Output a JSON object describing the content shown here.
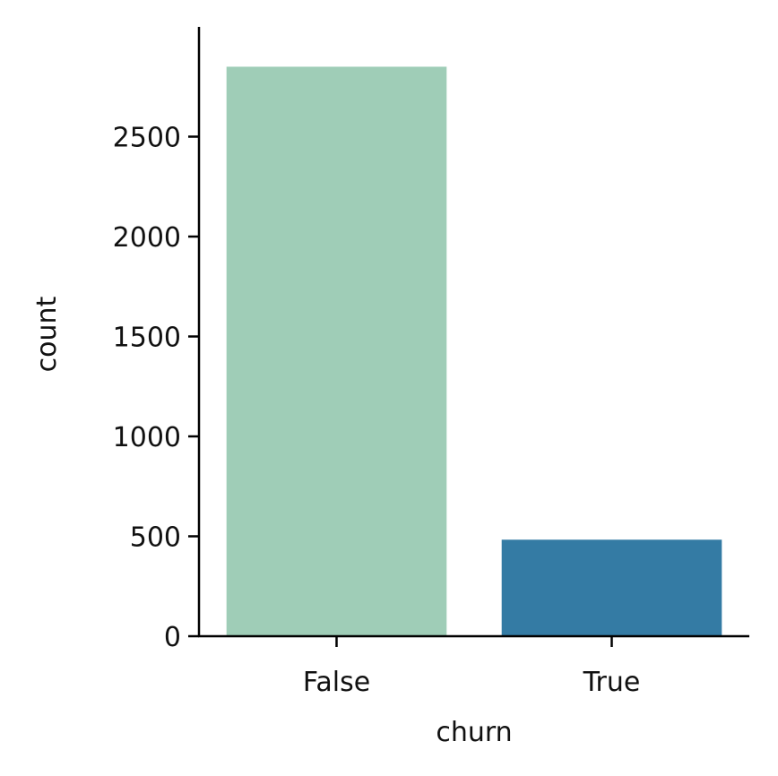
{
  "chart_data": {
    "type": "bar",
    "categories": [
      "False",
      "True"
    ],
    "values": [
      2850,
      483
    ],
    "colors": [
      "#9fcdb7",
      "#347ba4"
    ],
    "xlabel": "churn",
    "ylabel": "count",
    "ylim": [
      0,
      3000
    ],
    "yticks": [
      0,
      500,
      1000,
      1500,
      2000,
      2500
    ],
    "ytick_labels": [
      "0",
      "500",
      "1000",
      "1500",
      "2000",
      "2500"
    ],
    "grid": false,
    "spines": "left-bottom"
  }
}
